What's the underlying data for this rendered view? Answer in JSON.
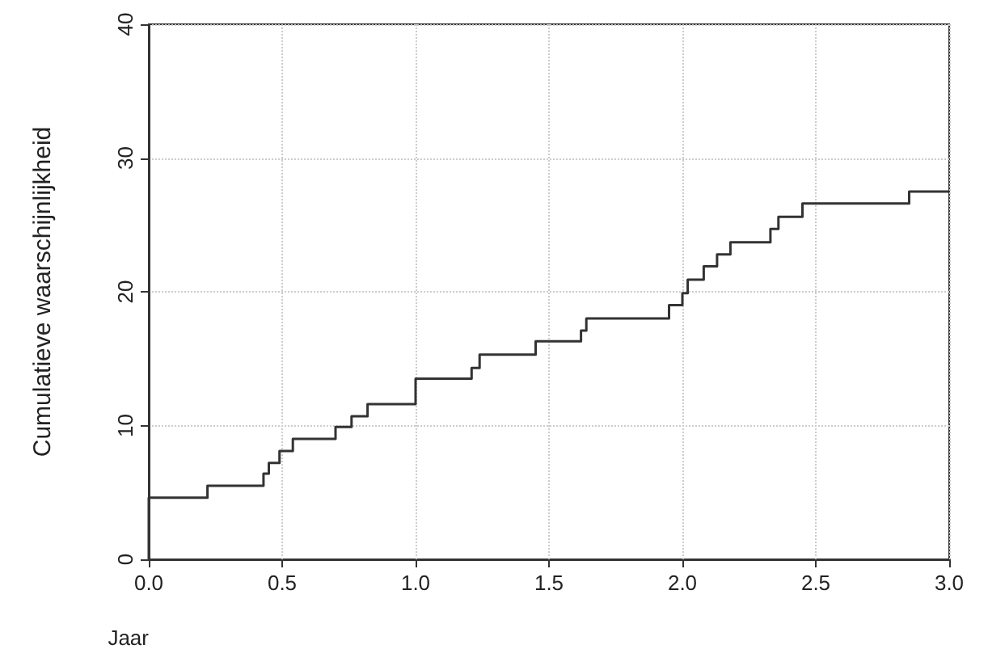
{
  "chart_data": {
    "type": "step",
    "xlabel": "Jaar",
    "ylabel": "Cumulatieve waarschijnlijkheid",
    "x": [
      0,
      0,
      0.22,
      0.43,
      0.45,
      0.49,
      0.54,
      0.7,
      0.76,
      0.82,
      1.0,
      1.21,
      1.24,
      1.45,
      1.62,
      1.64,
      1.95,
      2.0,
      2.02,
      2.08,
      2.13,
      2.18,
      2.33,
      2.36,
      2.45,
      2.85,
      3.0
    ],
    "series": [
      {
        "color": "#333333",
        "values": [
          0,
          4.6,
          5.5,
          6.4,
          7.2,
          8.1,
          9.0,
          9.9,
          10.7,
          11.6,
          13.5,
          14.3,
          15.3,
          16.3,
          17.1,
          18.0,
          19.0,
          19.9,
          20.9,
          21.9,
          22.8,
          23.7,
          24.7,
          25.6,
          26.6,
          27.5,
          27.5
        ]
      }
    ],
    "xlim": [
      0,
      3
    ],
    "xticks": [
      {
        "value": 0,
        "label": "0.0"
      },
      {
        "value": 0.5,
        "label": "0.5"
      },
      {
        "value": 1,
        "label": "1.0"
      },
      {
        "value": 1.5,
        "label": "1.5"
      },
      {
        "value": 2,
        "label": "2.0"
      },
      {
        "value": 2.5,
        "label": "2.5"
      },
      {
        "value": 3,
        "label": "3.0"
      }
    ],
    "ylim": [
      0,
      40
    ],
    "yticks": [
      0,
      10,
      20,
      30,
      40
    ],
    "grid": true,
    "marker": "none",
    "line_style": "solid"
  }
}
